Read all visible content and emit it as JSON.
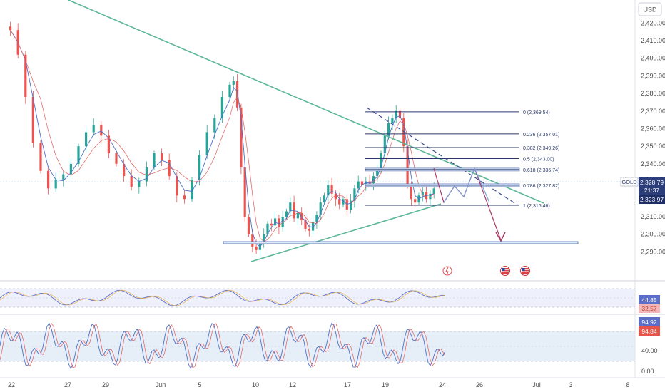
{
  "currency_button": "USD",
  "chart_data": {
    "type": "candlestick",
    "symbol": "GOLD",
    "currency": "USD",
    "x_tick_labels": [
      "22",
      "27",
      "29",
      "Jun",
      "5",
      "10",
      "12",
      "17",
      "19",
      "24",
      "26",
      "Jul",
      "3",
      "8"
    ],
    "y_tick_labels": [
      "2,290.00",
      "2,300.00",
      "2,310.00",
      "2,320.00",
      "2,330.00",
      "2,340.00",
      "2,350.00",
      "2,360.00",
      "2,370.00",
      "2,380.00",
      "2,390.00",
      "2,400.00",
      "2,410.00",
      "2,420.00"
    ],
    "ylim": [
      2280,
      2425
    ],
    "price_badges": {
      "symbol": "GOLD",
      "last_price": "2,328.79",
      "countdown": "21:37",
      "second_price": "2,323.97"
    },
    "fibonacci_levels": [
      {
        "label": "0 (2,369.54)",
        "value": 2369.54
      },
      {
        "label": "0.236 (2,357.01)",
        "value": 2357.01
      },
      {
        "label": "0.382 (2,349.26)",
        "value": 2349.26
      },
      {
        "label": "0.5 (2,343.00)",
        "value": 2343.0
      },
      {
        "label": "0.618 (2,336.74)",
        "value": 2336.74
      },
      {
        "label": "0.786 (2,327.82)",
        "value": 2327.82
      },
      {
        "label": "1 (2,316.46)",
        "value": 2316.46
      }
    ],
    "price_path": [
      [
        0,
        2418
      ],
      [
        2,
        2416
      ],
      [
        4,
        2402
      ],
      [
        6,
        2378
      ],
      [
        8,
        2352
      ],
      [
        10,
        2336
      ],
      [
        12,
        2326
      ],
      [
        14,
        2331
      ],
      [
        16,
        2334
      ],
      [
        18,
        2340
      ],
      [
        20,
        2350
      ],
      [
        22,
        2358
      ],
      [
        24,
        2362
      ],
      [
        26,
        2356
      ],
      [
        28,
        2346
      ],
      [
        30,
        2340
      ],
      [
        32,
        2333
      ],
      [
        34,
        2327
      ],
      [
        36,
        2330
      ],
      [
        38,
        2338
      ],
      [
        40,
        2346
      ],
      [
        42,
        2342
      ],
      [
        44,
        2333
      ],
      [
        46,
        2322
      ],
      [
        48,
        2320
      ],
      [
        50,
        2331
      ],
      [
        52,
        2345
      ],
      [
        54,
        2358
      ],
      [
        56,
        2366
      ],
      [
        58,
        2378
      ],
      [
        60,
        2385
      ],
      [
        61,
        2387
      ],
      [
        62,
        2372
      ],
      [
        63,
        2338
      ],
      [
        64,
        2310
      ],
      [
        65,
        2300
      ],
      [
        66,
        2293
      ],
      [
        67,
        2291
      ],
      [
        68,
        2295
      ],
      [
        69,
        2300
      ],
      [
        70,
        2306
      ],
      [
        71,
        2305
      ],
      [
        72,
        2309
      ],
      [
        73,
        2304
      ],
      [
        74,
        2310
      ],
      [
        75,
        2313
      ],
      [
        76,
        2318
      ],
      [
        77,
        2309
      ],
      [
        78,
        2312
      ],
      [
        79,
        2308
      ],
      [
        80,
        2303
      ],
      [
        81,
        2302
      ],
      [
        82,
        2307
      ],
      [
        83,
        2311
      ],
      [
        84,
        2318
      ],
      [
        85,
        2322
      ],
      [
        86,
        2328
      ],
      [
        87,
        2323
      ],
      [
        88,
        2320
      ],
      [
        89,
        2317
      ],
      [
        90,
        2320
      ],
      [
        91,
        2314
      ],
      [
        92,
        2319
      ],
      [
        93,
        2326
      ],
      [
        94,
        2330
      ],
      [
        95,
        2328
      ],
      [
        96,
        2330
      ],
      [
        97,
        2329
      ],
      [
        98,
        2333
      ],
      [
        99,
        2336
      ],
      [
        100,
        2346
      ],
      [
        101,
        2356
      ],
      [
        102,
        2363
      ],
      [
        103,
        2366
      ],
      [
        104,
        2370
      ],
      [
        105,
        2366
      ],
      [
        106,
        2350
      ],
      [
        107,
        2328
      ],
      [
        108,
        2320
      ],
      [
        109,
        2318
      ],
      [
        110,
        2322
      ],
      [
        111,
        2324
      ],
      [
        112,
        2320
      ],
      [
        113,
        2323
      ],
      [
        114,
        2326
      ]
    ],
    "rsi": {
      "axis_labels": [
        "44.85",
        "32.57"
      ]
    },
    "stochastic": {
      "axis_labels": [
        "94.92",
        "94.84",
        "40.00",
        "0.00"
      ]
    }
  }
}
